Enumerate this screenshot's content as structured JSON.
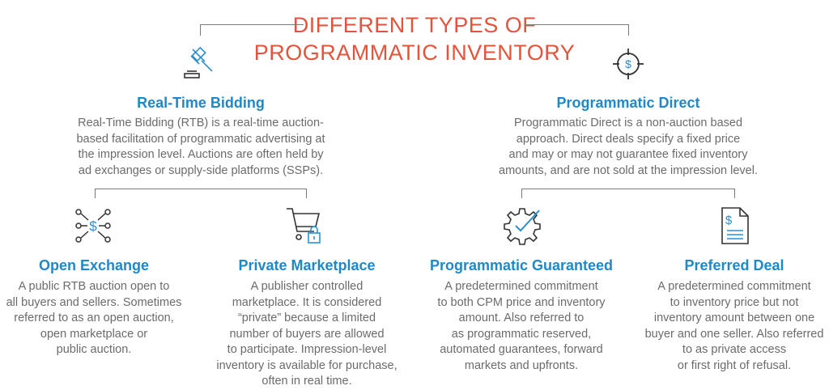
{
  "title": {
    "line1": "DIFFERENT TYPES OF",
    "line2": "PROGRAMMATIC INVENTORY"
  },
  "colors": {
    "title": "#e2543c",
    "heading": "#1e88c8",
    "body": "#6b6b6b",
    "icon_accent": "#2b8fd0",
    "icon_dark": "#333333"
  },
  "rtb": {
    "heading": "Real-Time Bidding",
    "icon": "gavel-icon",
    "lines": [
      "Real-Time Bidding (RTB) is a real-time auction-",
      "based facilitation of programmatic advertising at",
      "the impression level.  Auctions are often held by",
      "ad exchanges or supply-side platforms (SSPs)."
    ]
  },
  "direct": {
    "heading": "Programmatic Direct",
    "icon": "target-dollar-icon",
    "lines": [
      "Programmatic Direct is a non-auction based",
      "approach.  Direct deals specify a fixed price",
      "and may or may not guarantee fixed inventory",
      "amounts, and are not sold at the impression level."
    ]
  },
  "open_exchange": {
    "heading": "Open Exchange",
    "icon": "network-dollar-icon",
    "lines": [
      "A public RTB auction open to",
      "all buyers and sellers.  Sometimes",
      "referred to as an open auction,",
      "open marketplace or",
      "public auction."
    ]
  },
  "private_marketplace": {
    "heading": "Private Marketplace",
    "icon": "cart-lock-icon",
    "lines": [
      "A publisher controlled",
      "marketplace. It is considered",
      "“private” because a limited",
      "number of buyers are allowed",
      "to participate. Impression-level",
      "inventory is available for purchase,",
      "often in real time."
    ]
  },
  "guaranteed": {
    "heading": "Programmatic Guaranteed",
    "icon": "gear-check-icon",
    "lines": [
      "A predetermined commitment",
      "to both CPM price and inventory",
      "amount.  Also referred to",
      "as programmatic reserved,",
      "automated guarantees, forward",
      "markets and upfronts."
    ]
  },
  "preferred": {
    "heading": "Preferred Deal",
    "icon": "invoice-icon",
    "lines": [
      "A predetermined commitment",
      "to inventory price but not",
      "inventory amount between one",
      "buyer and one seller.  Also referred",
      "to as private access",
      "or first right of refusal."
    ]
  }
}
